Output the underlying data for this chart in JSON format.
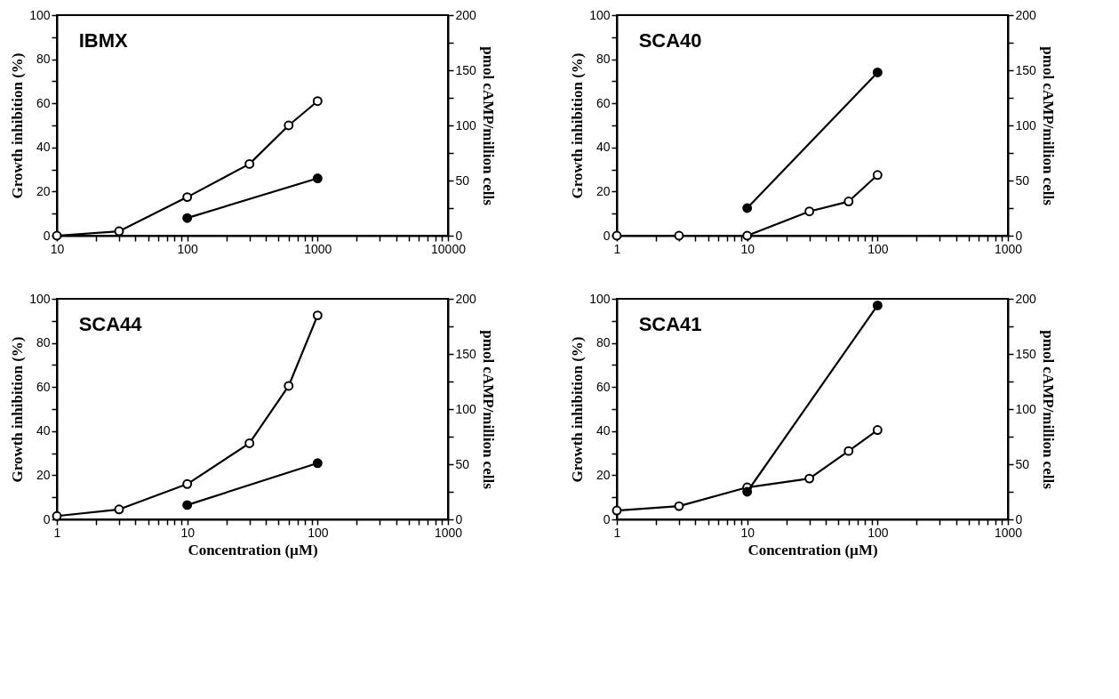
{
  "chart_data": [
    {
      "type": "line",
      "title": "IBMX",
      "ylabel": "Growth inhibition (%)",
      "y2label": "pmol cAMP/million cells",
      "log": "x",
      "grid": false,
      "marker": "circle",
      "line_style": "solid",
      "xlim": [
        10,
        10000
      ],
      "xticks": [
        10,
        {
          "value": 20,
          "label": null
        },
        {
          "value": 30,
          "label": null
        },
        {
          "value": 40,
          "label": null
        },
        {
          "value": 50,
          "label": null
        },
        {
          "value": 60,
          "label": null
        },
        {
          "value": 70,
          "label": null
        },
        {
          "value": 80,
          "label": null
        },
        {
          "value": 90,
          "label": null
        },
        100,
        {
          "value": 200,
          "label": null
        },
        {
          "value": 300,
          "label": null
        },
        {
          "value": 400,
          "label": null
        },
        {
          "value": 500,
          "label": null
        },
        {
          "value": 600,
          "label": null
        },
        {
          "value": 700,
          "label": null
        },
        {
          "value": 800,
          "label": null
        },
        {
          "value": 900,
          "label": null
        },
        1000,
        {
          "value": 2000,
          "label": null
        },
        {
          "value": 3000,
          "label": null
        },
        {
          "value": 4000,
          "label": null
        },
        {
          "value": 5000,
          "label": null
        },
        {
          "value": 6000,
          "label": null
        },
        {
          "value": 7000,
          "label": null
        },
        {
          "value": 8000,
          "label": null
        },
        {
          "value": 9000,
          "label": null
        },
        10000
      ],
      "ylim": [
        0,
        100
      ],
      "yticks": [
        0,
        {
          "value": 10,
          "label": null
        },
        20,
        {
          "value": 30,
          "label": null
        },
        40,
        {
          "value": 50,
          "label": null
        },
        60,
        {
          "value": 70,
          "label": null
        },
        80,
        {
          "value": 90,
          "label": null
        },
        100
      ],
      "y2lim": [
        0,
        200
      ],
      "y2ticks": [
        0,
        {
          "value": 25,
          "label": null
        },
        50,
        {
          "value": 75,
          "label": null
        },
        100,
        {
          "value": 125,
          "label": null
        },
        150,
        {
          "value": 175,
          "label": null
        },
        200
      ],
      "series": [
        {
          "color": "#000000",
          "x": [
            10,
            30,
            100,
            300,
            600,
            1000
          ],
          "values": [
            0,
            2,
            17.5,
            32.5,
            50,
            61
          ]
        },
        {
          "color": "#000000",
          "axis": "y2",
          "x": [
            100,
            1000
          ],
          "values": [
            16,
            52
          ]
        }
      ]
    },
    {
      "type": "line",
      "title": "SCA40",
      "ylabel": "Growth inhibition (%)",
      "y2label": "pmol cAMP/million cells",
      "log": "x",
      "grid": false,
      "marker": "circle",
      "line_style": "solid",
      "xlim": [
        1,
        1000
      ],
      "xticks": [
        1,
        {
          "value": 2,
          "label": null
        },
        {
          "value": 3,
          "label": null
        },
        {
          "value": 4,
          "label": null
        },
        {
          "value": 5,
          "label": null
        },
        {
          "value": 6,
          "label": null
        },
        {
          "value": 7,
          "label": null
        },
        {
          "value": 8,
          "label": null
        },
        {
          "value": 9,
          "label": null
        },
        10,
        {
          "value": 20,
          "label": null
        },
        {
          "value": 30,
          "label": null
        },
        {
          "value": 40,
          "label": null
        },
        {
          "value": 50,
          "label": null
        },
        {
          "value": 60,
          "label": null
        },
        {
          "value": 70,
          "label": null
        },
        {
          "value": 80,
          "label": null
        },
        {
          "value": 90,
          "label": null
        },
        100,
        {
          "value": 200,
          "label": null
        },
        {
          "value": 300,
          "label": null
        },
        {
          "value": 400,
          "label": null
        },
        {
          "value": 500,
          "label": null
        },
        {
          "value": 600,
          "label": null
        },
        {
          "value": 700,
          "label": null
        },
        {
          "value": 800,
          "label": null
        },
        {
          "value": 900,
          "label": null
        },
        1000
      ],
      "ylim": [
        0,
        100
      ],
      "yticks": [
        0,
        {
          "value": 10,
          "label": null
        },
        20,
        {
          "value": 30,
          "label": null
        },
        40,
        {
          "value": 50,
          "label": null
        },
        60,
        {
          "value": 70,
          "label": null
        },
        80,
        {
          "value": 90,
          "label": null
        },
        100
      ],
      "y2lim": [
        0,
        200
      ],
      "y2ticks": [
        0,
        {
          "value": 25,
          "label": null
        },
        50,
        {
          "value": 75,
          "label": null
        },
        100,
        {
          "value": 125,
          "label": null
        },
        150,
        {
          "value": 175,
          "label": null
        },
        200
      ],
      "series": [
        {
          "color": "#000000",
          "x": [
            1,
            3,
            10,
            30,
            60,
            100
          ],
          "values": [
            0,
            0,
            0,
            11,
            15.5,
            27.5
          ]
        },
        {
          "color": "#000000",
          "axis": "y2",
          "x": [
            10,
            100
          ],
          "values": [
            25,
            148
          ]
        }
      ]
    },
    {
      "type": "line",
      "title": "SCA44",
      "xlabel": "Concentration (µM)",
      "ylabel": "Growth inhibition (%)",
      "y2label": "pmol cAMP/million cells",
      "log": "x",
      "grid": false,
      "marker": "circle",
      "line_style": "solid",
      "xlim": [
        1,
        1000
      ],
      "xticks": [
        1,
        {
          "value": 2,
          "label": null
        },
        {
          "value": 3,
          "label": null
        },
        {
          "value": 4,
          "label": null
        },
        {
          "value": 5,
          "label": null
        },
        {
          "value": 6,
          "label": null
        },
        {
          "value": 7,
          "label": null
        },
        {
          "value": 8,
          "label": null
        },
        {
          "value": 9,
          "label": null
        },
        10,
        {
          "value": 20,
          "label": null
        },
        {
          "value": 30,
          "label": null
        },
        {
          "value": 40,
          "label": null
        },
        {
          "value": 50,
          "label": null
        },
        {
          "value": 60,
          "label": null
        },
        {
          "value": 70,
          "label": null
        },
        {
          "value": 80,
          "label": null
        },
        {
          "value": 90,
          "label": null
        },
        100,
        {
          "value": 200,
          "label": null
        },
        {
          "value": 300,
          "label": null
        },
        {
          "value": 400,
          "label": null
        },
        {
          "value": 500,
          "label": null
        },
        {
          "value": 600,
          "label": null
        },
        {
          "value": 700,
          "label": null
        },
        {
          "value": 800,
          "label": null
        },
        {
          "value": 900,
          "label": null
        },
        1000
      ],
      "ylim": [
        0,
        100
      ],
      "yticks": [
        0,
        {
          "value": 10,
          "label": null
        },
        20,
        {
          "value": 30,
          "label": null
        },
        40,
        {
          "value": 50,
          "label": null
        },
        60,
        {
          "value": 70,
          "label": null
        },
        80,
        {
          "value": 90,
          "label": null
        },
        100
      ],
      "y2lim": [
        0,
        200
      ],
      "y2ticks": [
        0,
        {
          "value": 25,
          "label": null
        },
        50,
        {
          "value": 75,
          "label": null
        },
        100,
        {
          "value": 125,
          "label": null
        },
        150,
        {
          "value": 175,
          "label": null
        },
        200
      ],
      "series": [
        {
          "color": "#000000",
          "x": [
            1,
            3,
            10,
            30,
            60,
            100
          ],
          "values": [
            1.5,
            4.5,
            16,
            34.5,
            60.5,
            92.5
          ]
        },
        {
          "color": "#000000",
          "axis": "y2",
          "x": [
            10,
            100
          ],
          "values": [
            13,
            51
          ]
        }
      ]
    },
    {
      "type": "line",
      "title": "SCA41",
      "xlabel": "Concentration (µM)",
      "ylabel": "Growth inhibition (%)",
      "y2label": "pmol cAMP/million cells",
      "log": "x",
      "grid": false,
      "marker": "circle",
      "line_style": "solid",
      "xlim": [
        1,
        1000
      ],
      "xticks": [
        1,
        {
          "value": 2,
          "label": null
        },
        {
          "value": 3,
          "label": null
        },
        {
          "value": 4,
          "label": null
        },
        {
          "value": 5,
          "label": null
        },
        {
          "value": 6,
          "label": null
        },
        {
          "value": 7,
          "label": null
        },
        {
          "value": 8,
          "label": null
        },
        {
          "value": 9,
          "label": null
        },
        10,
        {
          "value": 20,
          "label": null
        },
        {
          "value": 30,
          "label": null
        },
        {
          "value": 40,
          "label": null
        },
        {
          "value": 50,
          "label": null
        },
        {
          "value": 60,
          "label": null
        },
        {
          "value": 70,
          "label": null
        },
        {
          "value": 80,
          "label": null
        },
        {
          "value": 90,
          "label": null
        },
        100,
        {
          "value": 200,
          "label": null
        },
        {
          "value": 300,
          "label": null
        },
        {
          "value": 400,
          "label": null
        },
        {
          "value": 500,
          "label": null
        },
        {
          "value": 600,
          "label": null
        },
        {
          "value": 700,
          "label": null
        },
        {
          "value": 800,
          "label": null
        },
        {
          "value": 900,
          "label": null
        },
        1000
      ],
      "ylim": [
        0,
        100
      ],
      "yticks": [
        0,
        {
          "value": 10,
          "label": null
        },
        20,
        {
          "value": 30,
          "label": null
        },
        40,
        {
          "value": 50,
          "label": null
        },
        60,
        {
          "value": 70,
          "label": null
        },
        80,
        {
          "value": 90,
          "label": null
        },
        100
      ],
      "y2lim": [
        0,
        200
      ],
      "y2ticks": [
        0,
        {
          "value": 25,
          "label": null
        },
        50,
        {
          "value": 75,
          "label": null
        },
        100,
        {
          "value": 125,
          "label": null
        },
        150,
        {
          "value": 175,
          "label": null
        },
        200
      ],
      "series": [
        {
          "color": "#000000",
          "x": [
            1,
            3,
            10,
            30,
            60,
            100
          ],
          "values": [
            4,
            6,
            14.5,
            18.5,
            31,
            40.5
          ]
        },
        {
          "color": "#000000",
          "axis": "y2",
          "x": [
            10,
            100
          ],
          "values": [
            25,
            194
          ]
        }
      ]
    }
  ]
}
